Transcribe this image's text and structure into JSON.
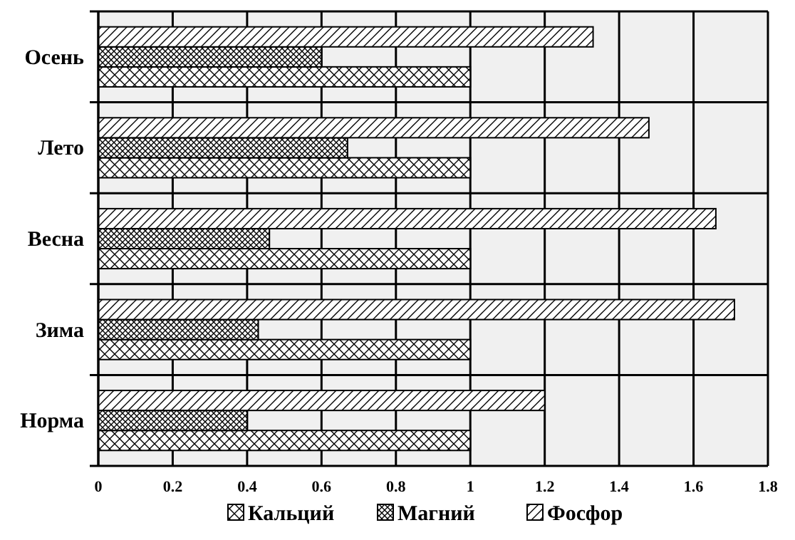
{
  "chart_data": {
    "type": "bar",
    "orientation": "horizontal",
    "categories": [
      "Осень",
      "Лето",
      "Весна",
      "Зима",
      "Норма"
    ],
    "series": [
      {
        "name": "Кальций",
        "color": "#000000",
        "values": [
          1.0,
          1.0,
          1.0,
          1.0,
          1.0
        ]
      },
      {
        "name": "Магний",
        "color": "#000000",
        "values": [
          0.6,
          0.67,
          0.46,
          0.43,
          0.4
        ]
      },
      {
        "name": "Фосфор",
        "color": "#000000",
        "values": [
          1.33,
          1.48,
          1.66,
          1.71,
          1.2
        ]
      }
    ],
    "xlim": [
      0,
      1.8
    ],
    "xticks": [
      0,
      0.2,
      0.4,
      0.6,
      0.8,
      1,
      1.2,
      1.4,
      1.6,
      1.8
    ],
    "grid": "x",
    "legend": "bottom"
  }
}
